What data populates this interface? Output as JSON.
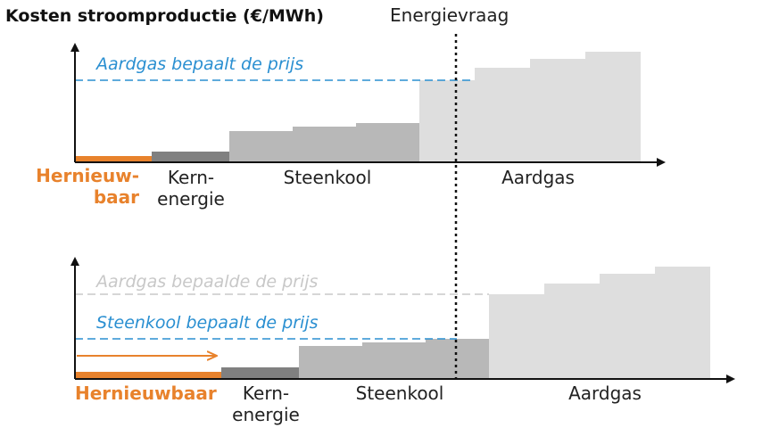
{
  "title": "Kosten stroomproductie (€/MWh)",
  "demand_label": "Energievraag",
  "colors": {
    "renewable": "#e8822c",
    "nuclear": "#808080",
    "coal": "#b8b8b8",
    "gas": "#dedede",
    "price_line": "#2a8fd1",
    "old_price": "#c8c8c8",
    "axis": "#111111"
  },
  "top": {
    "price_label": "Aardgas bepaalt de prijs",
    "categories": {
      "renewable_line1": "Hernieuw-",
      "renewable_line2": "baar",
      "nuclear_line1": "Kern-",
      "nuclear_line2": "energie",
      "coal": "Steenkool",
      "gas": "Aardgas"
    }
  },
  "bottom": {
    "old_price_label": "Aardgas bepaalde de prijs",
    "price_label": "Steenkool bepaalt de prijs",
    "categories": {
      "renewable": "Hernieuwbaar",
      "nuclear_line1": "Kern-",
      "nuclear_line2": "energie",
      "coal": "Steenkool",
      "gas": "Aardgas"
    }
  }
}
